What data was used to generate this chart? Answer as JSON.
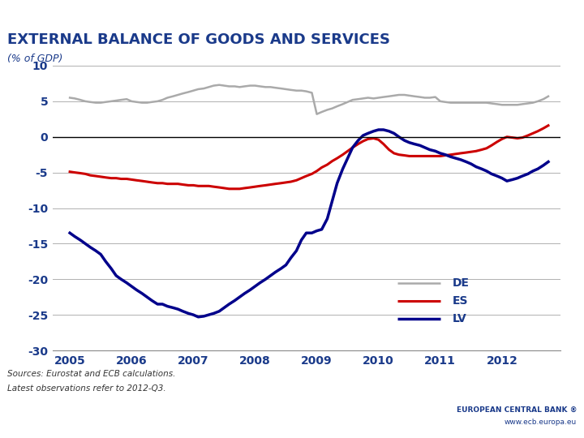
{
  "title": "EXTERNAL BALANCE OF GOODS AND SERVICES",
  "subtitle": "(% of GDP)",
  "title_color": "#1a3a8a",
  "header_color": "#1a3a8a",
  "source_text": "Sources: Eurostat and ECB calculations.",
  "source_text2": "Latest observations refer to 2012-Q3.",
  "ecb_text": "EUROPEAN CENTRAL BANK ®",
  "ecb_url": "www.ecb.europa.eu",
  "background_header": "#1a3a8a",
  "background_chart": "#ffffff",
  "ylim": [
    -30,
    10
  ],
  "yticks": [
    10,
    5,
    0,
    -5,
    -10,
    -15,
    -20,
    -25,
    -30
  ],
  "xtick_labels": [
    "2005",
    "2006",
    "2007",
    "2008",
    "2009",
    "2010",
    "2011",
    "2012"
  ],
  "grid_color": "#b0b0b0",
  "zero_line_color": "#000000",
  "DE_color": "#aaaaaa",
  "ES_color": "#cc0000",
  "LV_color": "#00008b",
  "DE_label": "DE",
  "ES_label": "ES",
  "LV_label": "LV",
  "DE_lw": 1.8,
  "ES_lw": 2.2,
  "LV_lw": 2.5,
  "DE_x": [
    2005.0,
    2005.08,
    2005.17,
    2005.25,
    2005.33,
    2005.42,
    2005.5,
    2005.58,
    2005.67,
    2005.75,
    2005.83,
    2005.92,
    2006.0,
    2006.08,
    2006.17,
    2006.25,
    2006.33,
    2006.42,
    2006.5,
    2006.58,
    2006.67,
    2006.75,
    2006.83,
    2006.92,
    2007.0,
    2007.08,
    2007.17,
    2007.25,
    2007.33,
    2007.42,
    2007.5,
    2007.58,
    2007.67,
    2007.75,
    2007.83,
    2007.92,
    2008.0,
    2008.08,
    2008.17,
    2008.25,
    2008.33,
    2008.42,
    2008.5,
    2008.58,
    2008.67,
    2008.75,
    2008.83,
    2008.92,
    2009.0,
    2009.08,
    2009.17,
    2009.25,
    2009.33,
    2009.42,
    2009.5,
    2009.58,
    2009.67,
    2009.75,
    2009.83,
    2009.92,
    2010.0,
    2010.08,
    2010.17,
    2010.25,
    2010.33,
    2010.42,
    2010.5,
    2010.58,
    2010.67,
    2010.75,
    2010.83,
    2010.92,
    2011.0,
    2011.08,
    2011.17,
    2011.25,
    2011.33,
    2011.42,
    2011.5,
    2011.58,
    2011.67,
    2011.75,
    2011.83,
    2011.92,
    2012.0,
    2012.08,
    2012.17,
    2012.25,
    2012.33,
    2012.42,
    2012.5,
    2012.58,
    2012.67,
    2012.75
  ],
  "DE_y": [
    5.5,
    5.4,
    5.2,
    5.0,
    4.9,
    4.8,
    4.8,
    4.9,
    5.0,
    5.1,
    5.2,
    5.3,
    5.0,
    4.9,
    4.8,
    4.8,
    4.9,
    5.0,
    5.2,
    5.5,
    5.7,
    5.9,
    6.1,
    6.3,
    6.5,
    6.7,
    6.8,
    7.0,
    7.2,
    7.3,
    7.2,
    7.1,
    7.1,
    7.0,
    7.1,
    7.2,
    7.2,
    7.1,
    7.0,
    7.0,
    6.9,
    6.8,
    6.7,
    6.6,
    6.5,
    6.5,
    6.4,
    6.2,
    3.2,
    3.5,
    3.8,
    4.0,
    4.3,
    4.6,
    4.9,
    5.2,
    5.3,
    5.4,
    5.5,
    5.4,
    5.5,
    5.6,
    5.7,
    5.8,
    5.9,
    5.9,
    5.8,
    5.7,
    5.6,
    5.5,
    5.5,
    5.6,
    5.0,
    4.9,
    4.8,
    4.8,
    4.8,
    4.8,
    4.8,
    4.8,
    4.8,
    4.8,
    4.7,
    4.6,
    4.5,
    4.5,
    4.5,
    4.5,
    4.6,
    4.7,
    4.8,
    5.0,
    5.3,
    5.7
  ],
  "ES_x": [
    2005.0,
    2005.08,
    2005.17,
    2005.25,
    2005.33,
    2005.42,
    2005.5,
    2005.58,
    2005.67,
    2005.75,
    2005.83,
    2005.92,
    2006.0,
    2006.08,
    2006.17,
    2006.25,
    2006.33,
    2006.42,
    2006.5,
    2006.58,
    2006.67,
    2006.75,
    2006.83,
    2006.92,
    2007.0,
    2007.08,
    2007.17,
    2007.25,
    2007.33,
    2007.42,
    2007.5,
    2007.58,
    2007.67,
    2007.75,
    2007.83,
    2007.92,
    2008.0,
    2008.08,
    2008.17,
    2008.25,
    2008.33,
    2008.42,
    2008.5,
    2008.58,
    2008.67,
    2008.75,
    2008.83,
    2008.92,
    2009.0,
    2009.08,
    2009.17,
    2009.25,
    2009.33,
    2009.42,
    2009.5,
    2009.58,
    2009.67,
    2009.75,
    2009.83,
    2009.92,
    2010.0,
    2010.08,
    2010.17,
    2010.25,
    2010.33,
    2010.42,
    2010.5,
    2010.58,
    2010.67,
    2010.75,
    2010.83,
    2010.92,
    2011.0,
    2011.08,
    2011.17,
    2011.25,
    2011.33,
    2011.42,
    2011.5,
    2011.58,
    2011.67,
    2011.75,
    2011.83,
    2011.92,
    2012.0,
    2012.08,
    2012.17,
    2012.25,
    2012.33,
    2012.42,
    2012.5,
    2012.58,
    2012.67,
    2012.75
  ],
  "ES_y": [
    -4.9,
    -5.0,
    -5.1,
    -5.2,
    -5.4,
    -5.5,
    -5.6,
    -5.7,
    -5.8,
    -5.8,
    -5.9,
    -5.9,
    -6.0,
    -6.1,
    -6.2,
    -6.3,
    -6.4,
    -6.5,
    -6.5,
    -6.6,
    -6.6,
    -6.6,
    -6.7,
    -6.8,
    -6.8,
    -6.9,
    -6.9,
    -6.9,
    -7.0,
    -7.1,
    -7.2,
    -7.3,
    -7.3,
    -7.3,
    -7.2,
    -7.1,
    -7.0,
    -6.9,
    -6.8,
    -6.7,
    -6.6,
    -6.5,
    -6.4,
    -6.3,
    -6.1,
    -5.8,
    -5.5,
    -5.2,
    -4.8,
    -4.3,
    -3.9,
    -3.4,
    -3.0,
    -2.5,
    -2.0,
    -1.5,
    -1.0,
    -0.6,
    -0.3,
    -0.2,
    -0.4,
    -1.0,
    -1.8,
    -2.3,
    -2.5,
    -2.6,
    -2.7,
    -2.7,
    -2.7,
    -2.7,
    -2.7,
    -2.7,
    -2.7,
    -2.6,
    -2.5,
    -2.4,
    -2.3,
    -2.2,
    -2.1,
    -2.0,
    -1.8,
    -1.6,
    -1.2,
    -0.7,
    -0.3,
    0.0,
    -0.1,
    -0.2,
    -0.1,
    0.2,
    0.5,
    0.8,
    1.2,
    1.6
  ],
  "LV_x": [
    2005.0,
    2005.08,
    2005.17,
    2005.25,
    2005.33,
    2005.42,
    2005.5,
    2005.58,
    2005.67,
    2005.75,
    2005.83,
    2005.92,
    2006.0,
    2006.08,
    2006.17,
    2006.25,
    2006.33,
    2006.42,
    2006.5,
    2006.58,
    2006.67,
    2006.75,
    2006.83,
    2006.92,
    2007.0,
    2007.08,
    2007.17,
    2007.25,
    2007.33,
    2007.42,
    2007.5,
    2007.58,
    2007.67,
    2007.75,
    2007.83,
    2007.92,
    2008.0,
    2008.08,
    2008.17,
    2008.25,
    2008.33,
    2008.42,
    2008.5,
    2008.58,
    2008.67,
    2008.75,
    2008.83,
    2008.92,
    2009.0,
    2009.08,
    2009.17,
    2009.25,
    2009.33,
    2009.42,
    2009.5,
    2009.58,
    2009.67,
    2009.75,
    2009.83,
    2009.92,
    2010.0,
    2010.08,
    2010.17,
    2010.25,
    2010.33,
    2010.42,
    2010.5,
    2010.58,
    2010.67,
    2010.75,
    2010.83,
    2010.92,
    2011.0,
    2011.08,
    2011.17,
    2011.25,
    2011.33,
    2011.42,
    2011.5,
    2011.58,
    2011.67,
    2011.75,
    2011.83,
    2011.92,
    2012.0,
    2012.08,
    2012.17,
    2012.25,
    2012.33,
    2012.42,
    2012.5,
    2012.58,
    2012.67,
    2012.75
  ],
  "LV_y": [
    -13.5,
    -14.0,
    -14.5,
    -15.0,
    -15.5,
    -16.0,
    -16.5,
    -17.5,
    -18.5,
    -19.5,
    -20.0,
    -20.5,
    -21.0,
    -21.5,
    -22.0,
    -22.5,
    -23.0,
    -23.5,
    -23.5,
    -23.8,
    -24.0,
    -24.2,
    -24.5,
    -24.8,
    -25.0,
    -25.3,
    -25.2,
    -25.0,
    -24.8,
    -24.5,
    -24.0,
    -23.5,
    -23.0,
    -22.5,
    -22.0,
    -21.5,
    -21.0,
    -20.5,
    -20.0,
    -19.5,
    -19.0,
    -18.5,
    -18.0,
    -17.0,
    -16.0,
    -14.5,
    -13.5,
    -13.5,
    -13.2,
    -13.0,
    -11.5,
    -9.0,
    -6.5,
    -4.5,
    -3.0,
    -1.5,
    -0.5,
    0.2,
    0.5,
    0.8,
    1.0,
    1.0,
    0.8,
    0.5,
    0.0,
    -0.5,
    -0.8,
    -1.0,
    -1.2,
    -1.5,
    -1.8,
    -2.0,
    -2.3,
    -2.5,
    -2.8,
    -3.0,
    -3.2,
    -3.5,
    -3.8,
    -4.2,
    -4.5,
    -4.8,
    -5.2,
    -5.5,
    -5.8,
    -6.2,
    -6.0,
    -5.8,
    -5.5,
    -5.2,
    -4.8,
    -4.5,
    -4.0,
    -3.5
  ]
}
